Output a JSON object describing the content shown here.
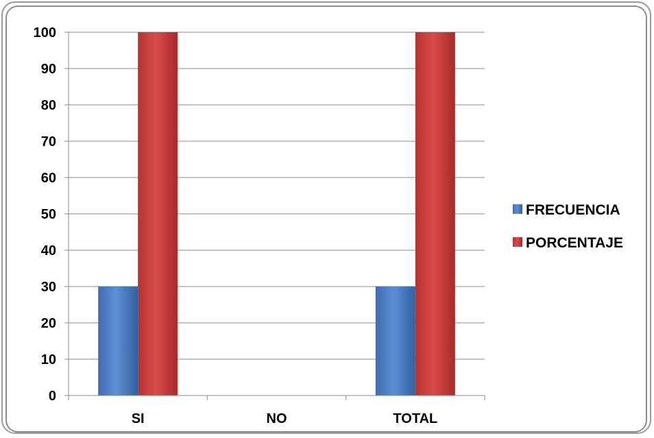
{
  "chart_data": {
    "type": "bar",
    "categories": [
      "SI",
      "NO",
      "TOTAL"
    ],
    "series": [
      {
        "name": "FRECUENCIA",
        "values": [
          30,
          0,
          30
        ],
        "color": "#4a7cc0"
      },
      {
        "name": "PORCENTAJE",
        "values": [
          100,
          0,
          100
        ],
        "color": "#c63b3b"
      }
    ],
    "y_ticks": [
      "0",
      "10",
      "20",
      "30",
      "40",
      "50",
      "60",
      "70",
      "80",
      "90",
      "100"
    ],
    "ylim": [
      0,
      100
    ],
    "grid": true,
    "legend": "right"
  }
}
